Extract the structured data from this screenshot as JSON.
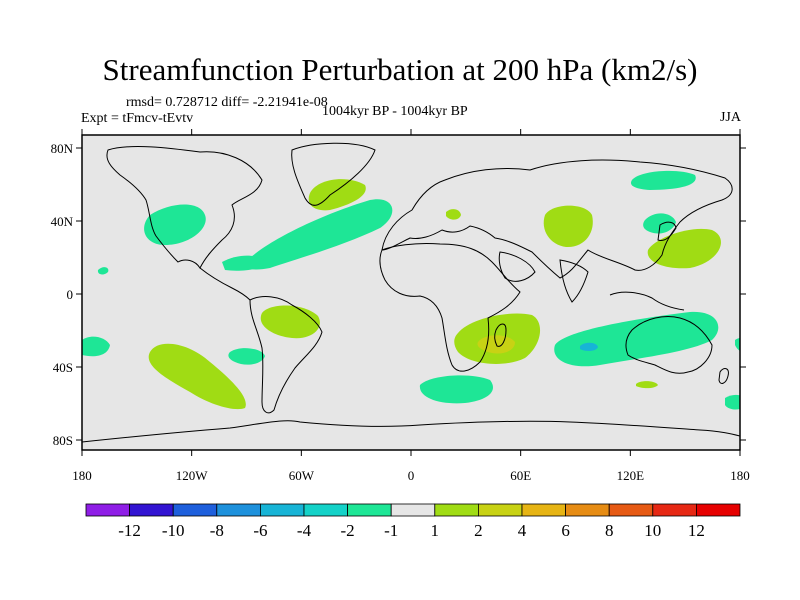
{
  "title": "Streamfunction Perturbation at 200 hPa (km2/s)",
  "stats_line": "rmsd= 0.728712 diff= -2.21941e-08",
  "experiment": "Expt = tFmcv-tEvtv",
  "period": "1004kyr BP - 1004kyr BP",
  "season": "JJA",
  "axes": {
    "lat_ticks": [
      "80N",
      "40N",
      "0",
      "40S",
      "80S"
    ],
    "lon_ticks": [
      "180",
      "120W",
      "60W",
      "0",
      "60E",
      "120E",
      "180"
    ]
  },
  "colorbar": {
    "labels": [
      "-12",
      "-10",
      "-8",
      "-6",
      "-4",
      "-2",
      "-1",
      "1",
      "2",
      "4",
      "6",
      "8",
      "10",
      "12"
    ],
    "colors": [
      "#8f1ee6",
      "#3214d2",
      "#1e5fdc",
      "#1e91dc",
      "#17b4d6",
      "#14d2c8",
      "#1ee696",
      "#e6e6e6",
      "#a0dc14",
      "#c8d214",
      "#e6b414",
      "#e68c14",
      "#e65a14",
      "#e62814",
      "#e60000"
    ]
  },
  "map_colors": {
    "background": "#e6e6e6",
    "green_pos": "#a0dc14",
    "teal_neg": "#1ee696",
    "yellow_pos": "#c8d214",
    "blue_neg": "#17b4d6"
  }
}
